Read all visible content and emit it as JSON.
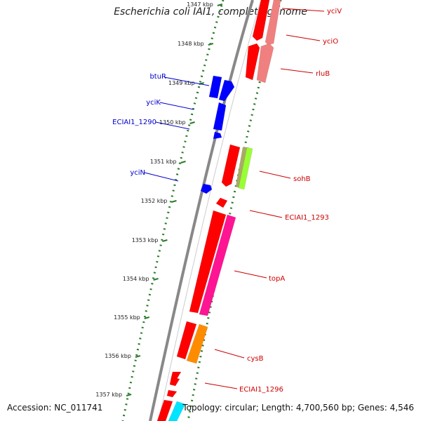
{
  "title": "Escherichia coli IAI1, complete genome",
  "footer": {
    "accession": "Accession: NC_011741",
    "topology": "Topology: circular; Length: 4,700,560 bp; Genes: 4,546"
  },
  "colors": {
    "forward_label": "#cc0000",
    "reverse_label": "#0000cc",
    "backbone": "#888888",
    "tick": "#2a7a2a",
    "gene_red": "#ff0000",
    "gene_blue": "#0000ff",
    "gene_pink": "#f08080",
    "gene_olive": "#aaaa66",
    "gene_lime": "#99ff33",
    "gene_magenta": "#ff1493",
    "gene_orange": "#ff8c00",
    "gene_cyan": "#00e5ff"
  },
  "scale_labels": [
    "1347 kbp",
    "1348 kbp",
    "1349 kbp",
    "1350 kbp",
    "1351 kbp",
    "1352 kbp",
    "1353 kbp",
    "1354 kbp",
    "1355 kbp",
    "1356 kbp",
    "1357 kbp"
  ],
  "gene_labels": [
    {
      "name": "yciV",
      "strand": "forward"
    },
    {
      "name": "yciO",
      "strand": "forward"
    },
    {
      "name": "rluB",
      "strand": "forward"
    },
    {
      "name": "btuR",
      "strand": "reverse"
    },
    {
      "name": "yciK",
      "strand": "reverse"
    },
    {
      "name": "ECIAI1_1290",
      "strand": "reverse"
    },
    {
      "name": "sohB",
      "strand": "forward"
    },
    {
      "name": "yciN",
      "strand": "reverse"
    },
    {
      "name": "ECIAI1_1293",
      "strand": "forward"
    },
    {
      "name": "topA",
      "strand": "forward"
    },
    {
      "name": "cysB",
      "strand": "forward"
    },
    {
      "name": "ECIAI1_1296",
      "strand": "forward"
    }
  ]
}
